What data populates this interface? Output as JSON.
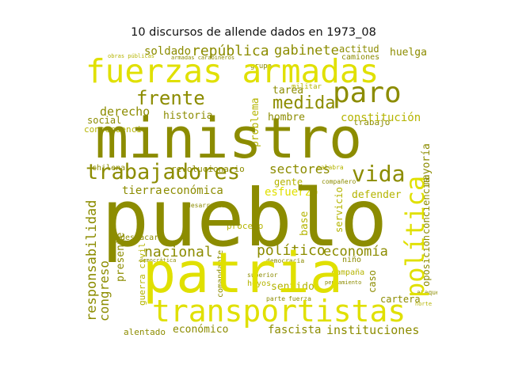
{
  "title": "10 discursos de allende dados en 1973_08",
  "palette": {
    "yellow": "#e0e000",
    "olive": "#8c8c00",
    "mid": "#b4b400",
    "light": "#cfcf4a"
  },
  "words": {
    "ministro": "ministro",
    "pueblo": "pueblo",
    "patria": "patria",
    "fuerzas_armadas": "fuerzas armadas",
    "transportistas": "transportistas",
    "trabajadores": "trabajadores",
    "politica": "política",
    "paro": "paro",
    "frente": "frente",
    "medida": "medida",
    "vida": "vida",
    "responsabilidad": "responsabilidad",
    "republica": "república",
    "gabinete": "gabinete",
    "soldado": "soldado",
    "sectores": "sectores",
    "constitucion": "constitución",
    "derecho": "derecho",
    "historia": "historia",
    "tarea": "tarea",
    "hombre": "hombre",
    "economia": "economía",
    "nacional": "nacional",
    "politico": "político",
    "esfuerzo": "esfuerzo",
    "economica": "económica",
    "tierra": "tierra",
    "congreso": "congreso",
    "instituciones": "instituciones",
    "fascista": "fascista",
    "economico": "económico",
    "alentado": "alentado",
    "social": "social",
    "consecuencia": "consecuencia",
    "revolucionario": "revolucionario",
    "mayoria": "mayoría",
    "huelga": "huelga",
    "actitud": "actitud",
    "problema": "problema",
    "gente": "gente",
    "defender": "defender",
    "base": "base",
    "servicio": "servicio",
    "presente": "presente",
    "oposicion": "oposición",
    "conciencia": "conciencia",
    "proceso": "proceso",
    "sentido": "sentido",
    "caso": "caso",
    "cartera": "cartera",
    "chilena": "chilena",
    "trabajo": "trabajo",
    "guerra_civil": "guerra civil",
    "destacar": "destacar",
    "hoyos": "hoyos",
    "campana": "campaña",
    "nino": "niño",
    "companero": "compañero",
    "comandante": "comandante",
    "camiones": "camiones",
    "grupo": "grupo",
    "militar": "militar",
    "democracia": "democracia",
    "superior": "superior",
    "parte": "parte",
    "fuerza": "fuerza",
    "democratica": "democrática",
    "armadas_carabineros": "armadas carabineros",
    "obras_publicas": "obras públicas",
    "desarrollo": "desarrollo",
    "pensamiento": "pensamiento",
    "palabra": "palabra",
    "ataque": "ataque",
    "norte": "norte"
  }
}
